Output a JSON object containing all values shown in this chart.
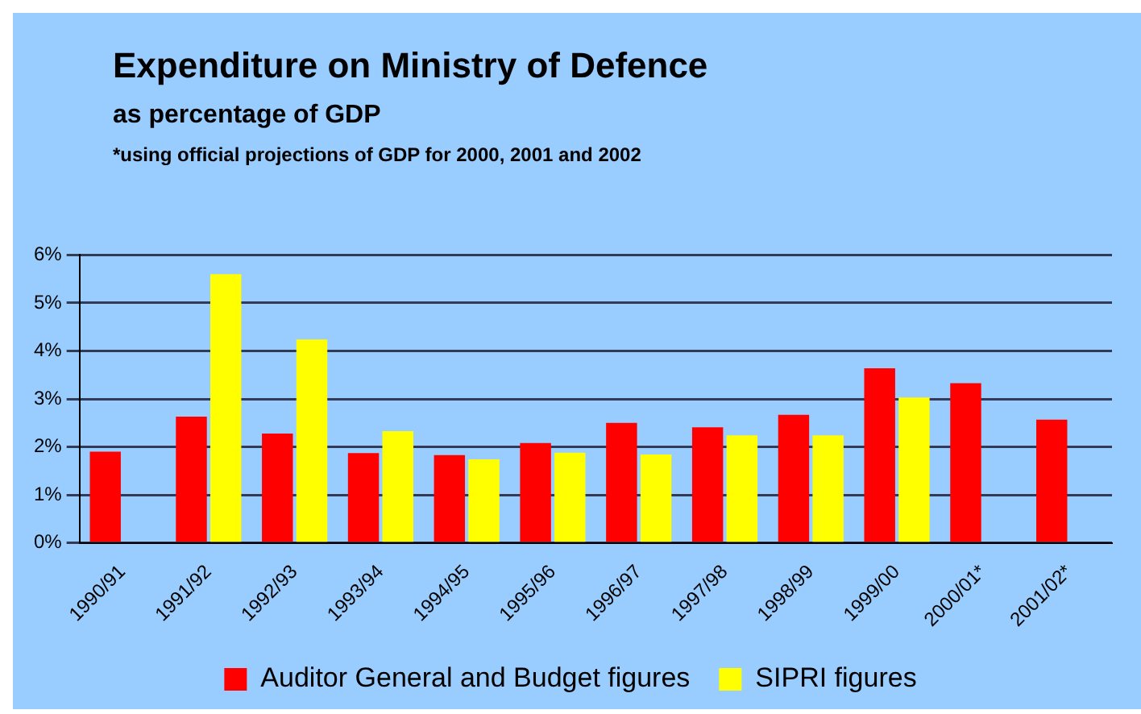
{
  "chart_data": {
    "type": "bar",
    "title": "Expenditure on Ministry of Defence",
    "subtitle": "as percentage of GDP",
    "annotations": [
      "*using official projections of GDP for 2000, 2001 and 2002"
    ],
    "categories": [
      "1990/91",
      "1991/92",
      "1992/93",
      "1993/94",
      "1994/95",
      "1995/96",
      "1996/97",
      "1997/98",
      "1998/99",
      "1999/00",
      "2000/01*",
      "2001/02*"
    ],
    "series": [
      {
        "name": "Auditor General and Budget figures",
        "color": "#ff0000",
        "values": [
          1.9,
          2.63,
          2.28,
          1.87,
          1.83,
          2.08,
          2.5,
          2.41,
          2.67,
          3.64,
          3.33,
          2.57
        ]
      },
      {
        "name": "SIPRI figures",
        "color": "#ffff00",
        "values": [
          null,
          5.6,
          4.24,
          2.33,
          1.74,
          1.88,
          1.84,
          2.24,
          2.24,
          3.03,
          null,
          null
        ]
      }
    ],
    "ylim": [
      0,
      6
    ],
    "yticks": [
      {
        "value": 0,
        "label": "0%"
      },
      {
        "value": 1,
        "label": "1%"
      },
      {
        "value": 2,
        "label": "2%"
      },
      {
        "value": 3,
        "label": "3%"
      },
      {
        "value": 4,
        "label": "4%"
      },
      {
        "value": 5,
        "label": "5%"
      },
      {
        "value": 6,
        "label": "6%"
      }
    ],
    "grid": "y",
    "legend": "bottom"
  }
}
